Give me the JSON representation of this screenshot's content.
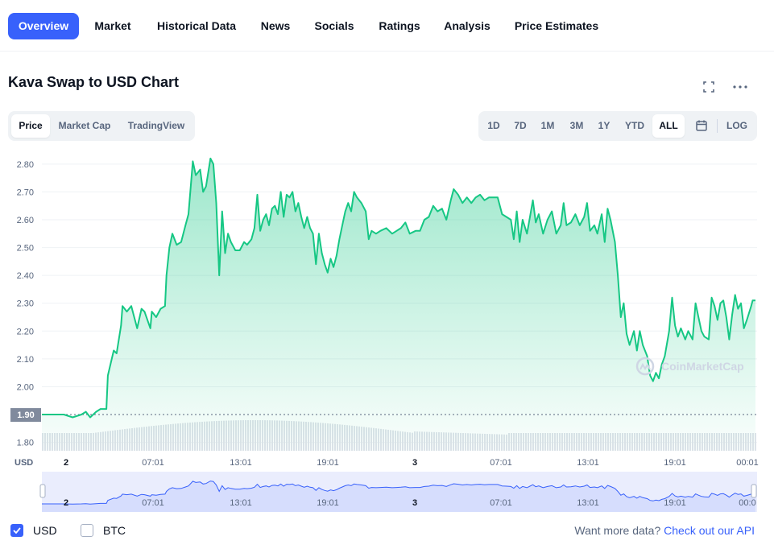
{
  "nav": {
    "tabs": [
      {
        "label": "Overview",
        "active": true
      },
      {
        "label": "Market"
      },
      {
        "label": "Historical Data"
      },
      {
        "label": "News"
      },
      {
        "label": "Socials"
      },
      {
        "label": "Ratings"
      },
      {
        "label": "Analysis"
      },
      {
        "label": "Price Estimates"
      }
    ]
  },
  "title": "Kava Swap to USD Chart",
  "header_icons": [
    "fullscreen-icon",
    "more-icon"
  ],
  "chart_type_tabs": {
    "price": "Price",
    "market_cap": "Market Cap",
    "tradingview": "TradingView",
    "active": "Price"
  },
  "range_tabs": {
    "d1": "1D",
    "d7": "7D",
    "m1": "1M",
    "m3": "3M",
    "y1": "1Y",
    "ytd": "YTD",
    "all": "ALL",
    "active": "ALL",
    "log": "LOG"
  },
  "colors": {
    "accent": "#3861fb",
    "line": "#16c784",
    "down": "#ea3943"
  },
  "chart_data": {
    "type": "area",
    "currency_label": "USD",
    "watermark": "CoinMarketCap",
    "baseline": 1.9,
    "baseline_label": "1.90",
    "ylim": [
      1.77,
      2.84
    ],
    "yticks": [
      "2.80",
      "2.70",
      "2.60",
      "2.50",
      "2.40",
      "2.30",
      "2.20",
      "2.10",
      "2.00",
      "1.80"
    ],
    "xticks": [
      "2",
      "07:01",
      "13:01",
      "19:01",
      "3",
      "07:01",
      "13:01",
      "19:01",
      "00:01"
    ],
    "xrange_hours": [
      -1.5,
      47.3
    ],
    "series": [
      {
        "values": [
          [
            -1.5,
            1.9
          ],
          [
            0,
            1.9
          ],
          [
            0.6,
            1.89
          ],
          [
            1.2,
            1.9
          ],
          [
            1.5,
            1.91
          ],
          [
            1.8,
            1.89
          ],
          [
            2.2,
            1.91
          ],
          [
            2.5,
            1.92
          ],
          [
            2.9,
            1.92
          ],
          [
            3.0,
            2.04
          ],
          [
            3.4,
            2.13
          ],
          [
            3.6,
            2.12
          ],
          [
            3.9,
            2.22
          ],
          [
            4.0,
            2.29
          ],
          [
            4.3,
            2.27
          ],
          [
            4.6,
            2.29
          ],
          [
            5.0,
            2.21
          ],
          [
            5.3,
            2.28
          ],
          [
            5.5,
            2.27
          ],
          [
            5.9,
            2.21
          ],
          [
            6.0,
            2.27
          ],
          [
            6.3,
            2.25
          ],
          [
            6.6,
            2.28
          ],
          [
            6.9,
            2.29
          ],
          [
            7.0,
            2.4
          ],
          [
            7.2,
            2.5
          ],
          [
            7.4,
            2.55
          ],
          [
            7.7,
            2.51
          ],
          [
            8.0,
            2.52
          ],
          [
            8.3,
            2.58
          ],
          [
            8.5,
            2.62
          ],
          [
            8.8,
            2.81
          ],
          [
            9.0,
            2.76
          ],
          [
            9.3,
            2.78
          ],
          [
            9.5,
            2.7
          ],
          [
            9.7,
            2.72
          ],
          [
            10.0,
            2.82
          ],
          [
            10.2,
            2.8
          ],
          [
            10.4,
            2.66
          ],
          [
            10.6,
            2.4
          ],
          [
            10.8,
            2.63
          ],
          [
            11.0,
            2.48
          ],
          [
            11.2,
            2.55
          ],
          [
            11.4,
            2.52
          ],
          [
            11.7,
            2.49
          ],
          [
            12.0,
            2.49
          ],
          [
            12.3,
            2.52
          ],
          [
            12.5,
            2.51
          ],
          [
            12.8,
            2.53
          ],
          [
            13.0,
            2.57
          ],
          [
            13.2,
            2.69
          ],
          [
            13.4,
            2.56
          ],
          [
            13.6,
            2.6
          ],
          [
            13.8,
            2.62
          ],
          [
            14.0,
            2.58
          ],
          [
            14.2,
            2.64
          ],
          [
            14.4,
            2.65
          ],
          [
            14.6,
            2.62
          ],
          [
            14.8,
            2.7
          ],
          [
            15.0,
            2.61
          ],
          [
            15.2,
            2.69
          ],
          [
            15.4,
            2.68
          ],
          [
            15.6,
            2.7
          ],
          [
            15.8,
            2.63
          ],
          [
            16.0,
            2.66
          ],
          [
            16.2,
            2.61
          ],
          [
            16.4,
            2.57
          ],
          [
            16.6,
            2.61
          ],
          [
            16.8,
            2.57
          ],
          [
            17.0,
            2.55
          ],
          [
            17.2,
            2.44
          ],
          [
            17.4,
            2.55
          ],
          [
            17.6,
            2.48
          ],
          [
            17.8,
            2.44
          ],
          [
            18.0,
            2.41
          ],
          [
            18.2,
            2.46
          ],
          [
            18.4,
            2.43
          ],
          [
            18.6,
            2.47
          ],
          [
            18.8,
            2.53
          ],
          [
            19.0,
            2.58
          ],
          [
            19.2,
            2.63
          ],
          [
            19.4,
            2.66
          ],
          [
            19.6,
            2.63
          ],
          [
            19.8,
            2.7
          ],
          [
            20.0,
            2.68
          ],
          [
            20.3,
            2.66
          ],
          [
            20.6,
            2.63
          ],
          [
            20.8,
            2.53
          ],
          [
            21.0,
            2.56
          ],
          [
            21.3,
            2.55
          ],
          [
            21.6,
            2.56
          ],
          [
            22.0,
            2.57
          ],
          [
            22.4,
            2.55
          ],
          [
            22.7,
            2.56
          ],
          [
            23.0,
            2.57
          ],
          [
            23.3,
            2.59
          ],
          [
            23.6,
            2.55
          ],
          [
            24.0,
            2.56
          ],
          [
            24.3,
            2.56
          ],
          [
            24.6,
            2.6
          ],
          [
            24.9,
            2.61
          ],
          [
            25.2,
            2.65
          ],
          [
            25.5,
            2.63
          ],
          [
            25.8,
            2.64
          ],
          [
            26.1,
            2.6
          ],
          [
            26.4,
            2.67
          ],
          [
            26.6,
            2.71
          ],
          [
            26.9,
            2.69
          ],
          [
            27.2,
            2.66
          ],
          [
            27.5,
            2.68
          ],
          [
            27.8,
            2.66
          ],
          [
            28.1,
            2.68
          ],
          [
            28.4,
            2.69
          ],
          [
            28.7,
            2.67
          ],
          [
            29.0,
            2.68
          ],
          [
            29.3,
            2.68
          ],
          [
            29.6,
            2.68
          ],
          [
            29.9,
            2.62
          ],
          [
            30.2,
            2.61
          ],
          [
            30.5,
            2.6
          ],
          [
            30.7,
            2.53
          ],
          [
            30.9,
            2.63
          ],
          [
            31.1,
            2.52
          ],
          [
            31.3,
            2.6
          ],
          [
            31.6,
            2.55
          ],
          [
            31.8,
            2.61
          ],
          [
            32.0,
            2.67
          ],
          [
            32.2,
            2.59
          ],
          [
            32.4,
            2.62
          ],
          [
            32.7,
            2.55
          ],
          [
            33.0,
            2.6
          ],
          [
            33.3,
            2.63
          ],
          [
            33.6,
            2.55
          ],
          [
            33.9,
            2.58
          ],
          [
            34.1,
            2.66
          ],
          [
            34.3,
            2.58
          ],
          [
            34.6,
            2.59
          ],
          [
            34.9,
            2.62
          ],
          [
            35.2,
            2.58
          ],
          [
            35.5,
            2.61
          ],
          [
            35.7,
            2.66
          ],
          [
            35.9,
            2.56
          ],
          [
            36.2,
            2.58
          ],
          [
            36.4,
            2.55
          ],
          [
            36.7,
            2.62
          ],
          [
            36.9,
            2.52
          ],
          [
            37.1,
            2.64
          ],
          [
            37.3,
            2.6
          ],
          [
            37.6,
            2.52
          ],
          [
            37.8,
            2.4
          ],
          [
            38.0,
            2.25
          ],
          [
            38.2,
            2.3
          ],
          [
            38.4,
            2.19
          ],
          [
            38.6,
            2.15
          ],
          [
            38.9,
            2.2
          ],
          [
            39.1,
            2.13
          ],
          [
            39.3,
            2.2
          ],
          [
            39.5,
            2.15
          ],
          [
            39.8,
            2.11
          ],
          [
            40.0,
            2.04
          ],
          [
            40.2,
            2.02
          ],
          [
            40.4,
            2.05
          ],
          [
            40.6,
            2.03
          ],
          [
            40.8,
            2.08
          ],
          [
            41.0,
            2.11
          ],
          [
            41.3,
            2.2
          ],
          [
            41.5,
            2.32
          ],
          [
            41.7,
            2.22
          ],
          [
            41.9,
            2.18
          ],
          [
            42.1,
            2.21
          ],
          [
            42.4,
            2.17
          ],
          [
            42.6,
            2.2
          ],
          [
            42.9,
            2.17
          ],
          [
            43.1,
            2.3
          ],
          [
            43.3,
            2.25
          ],
          [
            43.5,
            2.2
          ],
          [
            43.7,
            2.18
          ],
          [
            44.0,
            2.17
          ],
          [
            44.2,
            2.32
          ],
          [
            44.4,
            2.29
          ],
          [
            44.6,
            2.24
          ],
          [
            44.8,
            2.3
          ],
          [
            45.0,
            2.31
          ],
          [
            45.2,
            2.25
          ],
          [
            45.4,
            2.17
          ],
          [
            45.6,
            2.26
          ],
          [
            45.8,
            2.33
          ],
          [
            46.0,
            2.28
          ],
          [
            46.2,
            2.3
          ],
          [
            46.4,
            2.21
          ],
          [
            46.6,
            2.24
          ],
          [
            46.9,
            2.29
          ],
          [
            47.0,
            2.31
          ]
        ]
      }
    ]
  },
  "navigator": {
    "xticks": [
      "2",
      "07:01",
      "13:01",
      "19:01",
      "3",
      "07:01",
      "13:01",
      "19:01",
      "00:0"
    ]
  },
  "footer": {
    "usd": "USD",
    "btc": "BTC",
    "api_text": "Want more data?",
    "api_link": "Check out our API"
  }
}
